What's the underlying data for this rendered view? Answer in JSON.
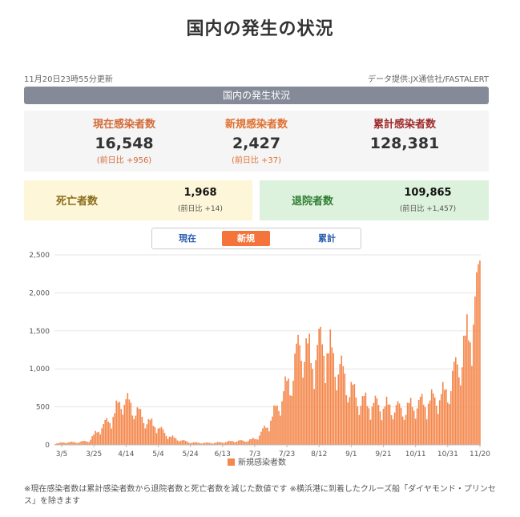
{
  "page": {
    "title": "国内の発生の状況"
  },
  "meta": {
    "updated": "11月20日23時55分更新",
    "source": "データ提供:JX通信社/FASTALERT"
  },
  "section_bar": "国内の発生状況",
  "stats": {
    "current": {
      "label": "現在感染者数",
      "value": "16,548",
      "diff": "(前日比 +956)"
    },
    "new": {
      "label": "新規感染者数",
      "value": "2,427",
      "diff": "(前日比 +37)"
    },
    "total": {
      "label": "累計感染者数",
      "value": "128,381"
    }
  },
  "deaths": {
    "label": "死亡者数",
    "value": "1,968",
    "diff": "(前日比 +14)"
  },
  "recovered": {
    "label": "退院者数",
    "value": "109,865",
    "diff": "(前日比 +1,457)"
  },
  "toggle": {
    "current": "現在",
    "new": "新規",
    "total": "累計",
    "selected": "新規"
  },
  "colors": {
    "bar": "#f4874b",
    "accent": "#f4743b",
    "grid": "#e6e6e6",
    "axis": "#555555"
  },
  "footnote": "※現在感染者数は累計感染者数から退院者数と死亡者数を減じた数値です ※横浜港に到着したクルーズ船「ダイヤモンド・プリンセス」を除きます",
  "chart_data": {
    "type": "bar",
    "title": "",
    "xlabel": "",
    "ylabel": "",
    "x_start": "3/1",
    "x_end": "11/20",
    "x_ticks": [
      "3/5",
      "3/25",
      "4/14",
      "5/4",
      "5/24",
      "6/13",
      "7/3",
      "7/23",
      "8/12",
      "9/1",
      "9/21",
      "10/11",
      "10/31",
      "11/20"
    ],
    "ylim": [
      0,
      2500
    ],
    "y_ticks": [
      "0",
      "500",
      "1,000",
      "1,500",
      "2,000",
      "2,500"
    ],
    "grid": true,
    "legend_position": "bottom",
    "series": [
      {
        "name": "新規感染者数",
        "weekly_peaks": [
          20,
          40,
          40,
          60,
          250,
          400,
          700,
          580,
          380,
          300,
          150,
          80,
          40,
          30,
          30,
          40,
          60,
          60,
          100,
          300,
          620,
          1000,
          1560,
          1320,
          1580,
          1300,
          1000,
          700,
          640,
          600,
          580,
          540,
          600,
          650,
          700,
          800,
          1200,
          1700,
          2427
        ]
      }
    ]
  }
}
